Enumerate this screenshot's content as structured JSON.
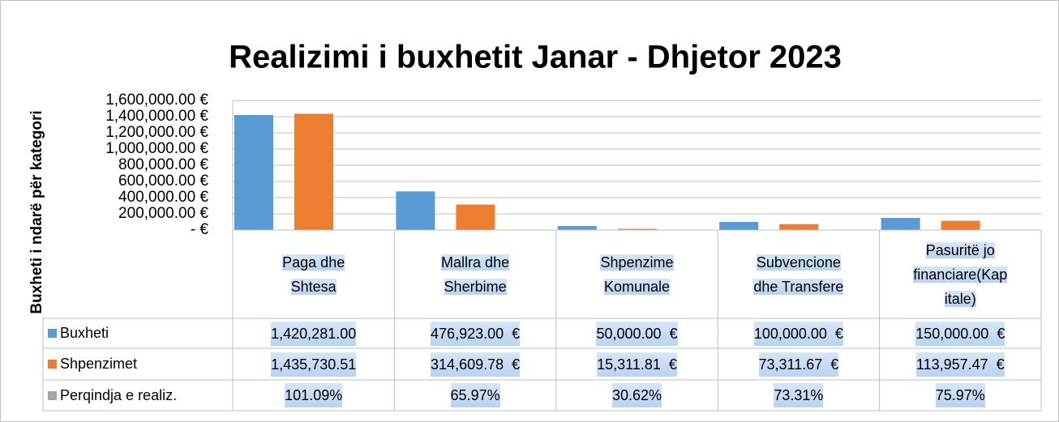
{
  "chart_data": {
    "type": "bar",
    "title": "Realizimi i buxhetit Janar - Dhjetor 2023",
    "y_label": "Buxheti i ndarë për kategori",
    "categories": [
      "Paga dhe Shtesa",
      "Mallra dhe Sherbime",
      "Shpenzime Komunale",
      "Subvencione dhe Transfere",
      "Pasuritë jo financiare(Kapitale)"
    ],
    "series": [
      {
        "name": "Buxheti",
        "color": "#5b9bd5",
        "values": [
          1420281.0,
          476923.0,
          50000.0,
          100000.0,
          150000.0
        ],
        "value_labels": [
          "1,420,281.00",
          "476,923.00  €",
          "50,000.00  €",
          "100,000.00  €",
          "150,000.00  €"
        ]
      },
      {
        "name": "Shpenzimet",
        "color": "#ed7d31",
        "values": [
          1435730.51,
          314609.78,
          15311.81,
          73311.67,
          113957.47
        ],
        "value_labels": [
          "1,435,730.51",
          "314,609.78  €",
          "15,311.81  €",
          "73,311.67  €",
          "113,957.47  €"
        ]
      },
      {
        "name": "Perqindja e realiz.",
        "color": "#a5a5a5",
        "values": [
          101.09,
          65.97,
          30.62,
          73.31,
          75.97
        ],
        "value_labels": [
          "101.09%",
          "65.97%",
          "30.62%",
          "73.31%",
          "75.97%"
        ]
      }
    ],
    "ylim": [
      0,
      1600000
    ],
    "yticks": [
      {
        "value": 0,
        "label": "-   €"
      },
      {
        "value": 200000,
        "label": "200,000.00  €"
      },
      {
        "value": 400000,
        "label": "400,000.00  €"
      },
      {
        "value": 600000,
        "label": "600,000.00  €"
      },
      {
        "value": 800000,
        "label": "800,000.00  €"
      },
      {
        "value": 1000000,
        "label": "1,000,000.00  €"
      },
      {
        "value": 1200000,
        "label": "1,200,000.00  €"
      },
      {
        "value": 1400000,
        "label": "1,400,000.00  €"
      },
      {
        "value": 1600000,
        "label": "1,600,000.00  €"
      }
    ],
    "grid": true,
    "data_table": true
  }
}
